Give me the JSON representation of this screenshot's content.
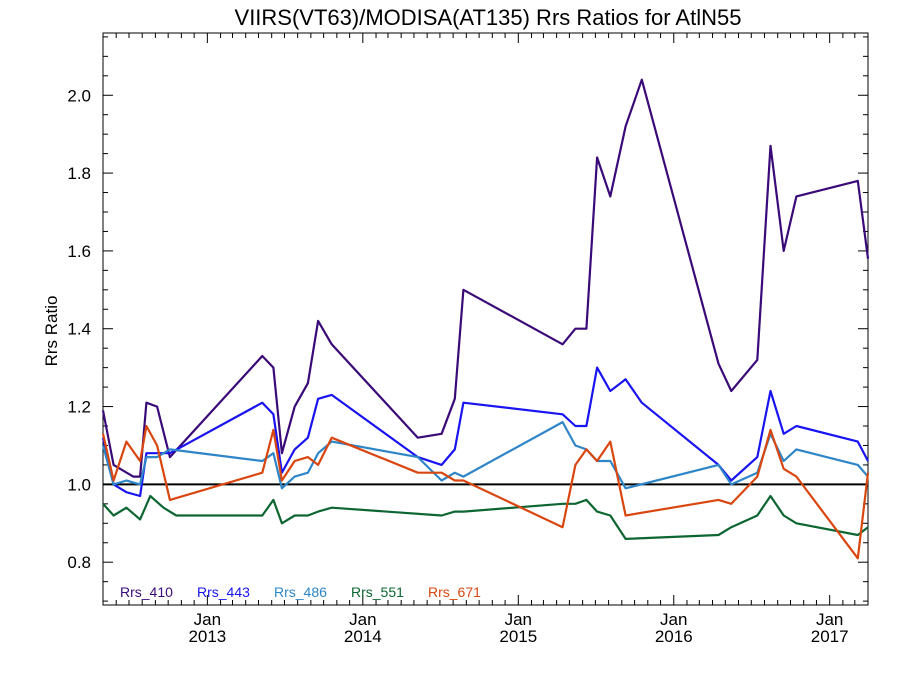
{
  "chart_data": {
    "type": "line",
    "title": "VIIRS(VT63)/MODISA(AT135)  Rrs Ratios for AtlN55",
    "ylabel": "Rrs Ratio",
    "xlabel": "",
    "xlim": [
      "2012-05-01",
      "2017-04-01"
    ],
    "ylim": [
      0.69,
      2.16
    ],
    "y_ticks": [
      0.8,
      1.0,
      1.2,
      1.4,
      1.6,
      1.8,
      2.0
    ],
    "y_tick_labels": [
      "0.8",
      "1.0",
      "1.2",
      "1.4",
      "1.6",
      "1.8",
      "2.0"
    ],
    "x_ticks": [
      {
        "date": "2013-01-01",
        "line1": "Jan",
        "line2": "2013"
      },
      {
        "date": "2014-01-01",
        "line1": "Jan",
        "line2": "2014"
      },
      {
        "date": "2015-01-01",
        "line1": "Jan",
        "line2": "2015"
      },
      {
        "date": "2016-01-01",
        "line1": "Jan",
        "line2": "2016"
      },
      {
        "date": "2017-01-01",
        "line1": "Jan",
        "line2": "2017"
      }
    ],
    "reference_line": 1.0,
    "legend_placement": "bottom-left",
    "series": [
      {
        "name": "Rrs_410",
        "color": "#3a0a78",
        "points": [
          [
            "2012-05-01",
            1.19
          ],
          [
            "2012-05-26",
            1.05
          ],
          [
            "2012-07-11",
            1.02
          ],
          [
            "2012-07-27",
            1.02
          ],
          [
            "2012-08-11",
            1.21
          ],
          [
            "2012-09-05",
            1.2
          ],
          [
            "2012-10-05",
            1.07
          ],
          [
            "2013-05-10",
            1.33
          ],
          [
            "2013-06-05",
            1.3
          ],
          [
            "2013-06-25",
            1.08
          ],
          [
            "2013-07-25",
            1.2
          ],
          [
            "2013-08-25",
            1.26
          ],
          [
            "2013-09-18",
            1.42
          ],
          [
            "2013-10-20",
            1.36
          ],
          [
            "2014-05-10",
            1.12
          ],
          [
            "2014-07-05",
            1.13
          ],
          [
            "2014-08-05",
            1.22
          ],
          [
            "2014-08-25",
            1.5
          ],
          [
            "2015-04-15",
            1.36
          ],
          [
            "2015-05-15",
            1.4
          ],
          [
            "2015-06-10",
            1.4
          ],
          [
            "2015-07-05",
            1.84
          ],
          [
            "2015-08-05",
            1.74
          ],
          [
            "2015-09-10",
            1.92
          ],
          [
            "2015-10-18",
            2.04
          ],
          [
            "2016-04-15",
            1.31
          ],
          [
            "2016-05-15",
            1.24
          ],
          [
            "2016-07-15",
            1.32
          ],
          [
            "2016-08-15",
            1.87
          ],
          [
            "2016-09-15",
            1.6
          ],
          [
            "2016-10-15",
            1.74
          ],
          [
            "2017-03-08",
            1.78
          ],
          [
            "2017-04-01",
            1.58
          ]
        ]
      },
      {
        "name": "Rrs_443",
        "color": "#1a14f0",
        "points": [
          [
            "2012-05-01",
            1.12
          ],
          [
            "2012-05-26",
            1.0
          ],
          [
            "2012-06-25",
            0.98
          ],
          [
            "2012-07-27",
            0.97
          ],
          [
            "2012-08-11",
            1.08
          ],
          [
            "2012-09-05",
            1.08
          ],
          [
            "2012-10-05",
            1.08
          ],
          [
            "2013-05-10",
            1.21
          ],
          [
            "2013-06-05",
            1.18
          ],
          [
            "2013-06-25",
            1.03
          ],
          [
            "2013-07-25",
            1.09
          ],
          [
            "2013-08-25",
            1.12
          ],
          [
            "2013-09-18",
            1.22
          ],
          [
            "2013-10-20",
            1.23
          ],
          [
            "2014-05-10",
            1.07
          ],
          [
            "2014-07-05",
            1.05
          ],
          [
            "2014-08-05",
            1.09
          ],
          [
            "2014-08-25",
            1.21
          ],
          [
            "2015-04-15",
            1.18
          ],
          [
            "2015-05-15",
            1.15
          ],
          [
            "2015-06-10",
            1.15
          ],
          [
            "2015-07-05",
            1.3
          ],
          [
            "2015-08-05",
            1.24
          ],
          [
            "2015-09-10",
            1.27
          ],
          [
            "2015-10-18",
            1.21
          ],
          [
            "2016-04-15",
            1.05
          ],
          [
            "2016-05-15",
            1.01
          ],
          [
            "2016-07-15",
            1.07
          ],
          [
            "2016-08-15",
            1.24
          ],
          [
            "2016-09-15",
            1.13
          ],
          [
            "2016-10-15",
            1.15
          ],
          [
            "2017-03-08",
            1.11
          ],
          [
            "2017-04-01",
            1.06
          ]
        ]
      },
      {
        "name": "Rrs_486",
        "color": "#2e86c8",
        "points": [
          [
            "2012-05-01",
            1.1
          ],
          [
            "2012-05-26",
            1.0
          ],
          [
            "2012-06-25",
            1.01
          ],
          [
            "2012-07-27",
            1.0
          ],
          [
            "2012-08-11",
            1.07
          ],
          [
            "2012-09-05",
            1.07
          ],
          [
            "2012-10-05",
            1.09
          ],
          [
            "2013-05-10",
            1.06
          ],
          [
            "2013-06-05",
            1.08
          ],
          [
            "2013-06-25",
            0.99
          ],
          [
            "2013-07-25",
            1.02
          ],
          [
            "2013-08-25",
            1.03
          ],
          [
            "2013-09-18",
            1.08
          ],
          [
            "2013-10-20",
            1.11
          ],
          [
            "2014-05-10",
            1.07
          ],
          [
            "2014-07-05",
            1.01
          ],
          [
            "2014-08-05",
            1.03
          ],
          [
            "2014-08-25",
            1.02
          ],
          [
            "2015-04-15",
            1.16
          ],
          [
            "2015-05-15",
            1.1
          ],
          [
            "2015-06-10",
            1.09
          ],
          [
            "2015-07-05",
            1.06
          ],
          [
            "2015-08-05",
            1.06
          ],
          [
            "2015-09-10",
            0.99
          ],
          [
            "2016-04-15",
            1.05
          ],
          [
            "2016-05-15",
            1.0
          ],
          [
            "2016-07-15",
            1.03
          ],
          [
            "2016-08-15",
            1.13
          ],
          [
            "2016-09-15",
            1.06
          ],
          [
            "2016-10-15",
            1.09
          ],
          [
            "2017-03-08",
            1.05
          ],
          [
            "2017-04-01",
            1.02
          ]
        ]
      },
      {
        "name": "Rrs_551",
        "color": "#0d6632",
        "points": [
          [
            "2012-05-01",
            0.95
          ],
          [
            "2012-05-26",
            0.92
          ],
          [
            "2012-06-25",
            0.94
          ],
          [
            "2012-07-27",
            0.91
          ],
          [
            "2012-08-20",
            0.97
          ],
          [
            "2012-09-20",
            0.94
          ],
          [
            "2012-10-20",
            0.92
          ],
          [
            "2013-05-10",
            0.92
          ],
          [
            "2013-06-05",
            0.96
          ],
          [
            "2013-06-25",
            0.9
          ],
          [
            "2013-07-25",
            0.92
          ],
          [
            "2013-08-25",
            0.92
          ],
          [
            "2013-09-18",
            0.93
          ],
          [
            "2013-10-20",
            0.94
          ],
          [
            "2014-07-05",
            0.92
          ],
          [
            "2014-08-05",
            0.93
          ],
          [
            "2014-08-25",
            0.93
          ],
          [
            "2015-04-15",
            0.95
          ],
          [
            "2015-05-15",
            0.95
          ],
          [
            "2015-06-10",
            0.96
          ],
          [
            "2015-07-05",
            0.93
          ],
          [
            "2015-08-05",
            0.92
          ],
          [
            "2015-09-10",
            0.86
          ],
          [
            "2016-04-15",
            0.87
          ],
          [
            "2016-05-15",
            0.89
          ],
          [
            "2016-07-15",
            0.92
          ],
          [
            "2016-08-15",
            0.97
          ],
          [
            "2016-09-15",
            0.92
          ],
          [
            "2016-10-15",
            0.9
          ],
          [
            "2017-03-08",
            0.87
          ],
          [
            "2017-04-01",
            0.89
          ]
        ]
      },
      {
        "name": "Rrs_671",
        "color": "#d9460f",
        "points": [
          [
            "2012-05-01",
            1.13
          ],
          [
            "2012-05-26",
            1.01
          ],
          [
            "2012-06-25",
            1.11
          ],
          [
            "2012-07-27",
            1.06
          ],
          [
            "2012-08-11",
            1.15
          ],
          [
            "2012-09-05",
            1.1
          ],
          [
            "2012-10-05",
            0.96
          ],
          [
            "2013-05-10",
            1.03
          ],
          [
            "2013-06-05",
            1.14
          ],
          [
            "2013-06-25",
            1.01
          ],
          [
            "2013-07-25",
            1.06
          ],
          [
            "2013-08-25",
            1.07
          ],
          [
            "2013-09-18",
            1.05
          ],
          [
            "2013-10-20",
            1.12
          ],
          [
            "2014-05-10",
            1.03
          ],
          [
            "2014-07-05",
            1.03
          ],
          [
            "2014-08-05",
            1.01
          ],
          [
            "2014-08-25",
            1.01
          ],
          [
            "2015-04-15",
            0.89
          ],
          [
            "2015-05-15",
            1.05
          ],
          [
            "2015-06-10",
            1.09
          ],
          [
            "2015-07-05",
            1.06
          ],
          [
            "2015-08-05",
            1.11
          ],
          [
            "2015-09-10",
            0.92
          ],
          [
            "2016-04-15",
            0.96
          ],
          [
            "2016-05-15",
            0.95
          ],
          [
            "2016-07-15",
            1.02
          ],
          [
            "2016-08-15",
            1.14
          ],
          [
            "2016-09-15",
            1.04
          ],
          [
            "2016-10-15",
            1.02
          ],
          [
            "2017-03-08",
            0.81
          ],
          [
            "2017-04-01",
            1.03
          ]
        ]
      }
    ]
  }
}
